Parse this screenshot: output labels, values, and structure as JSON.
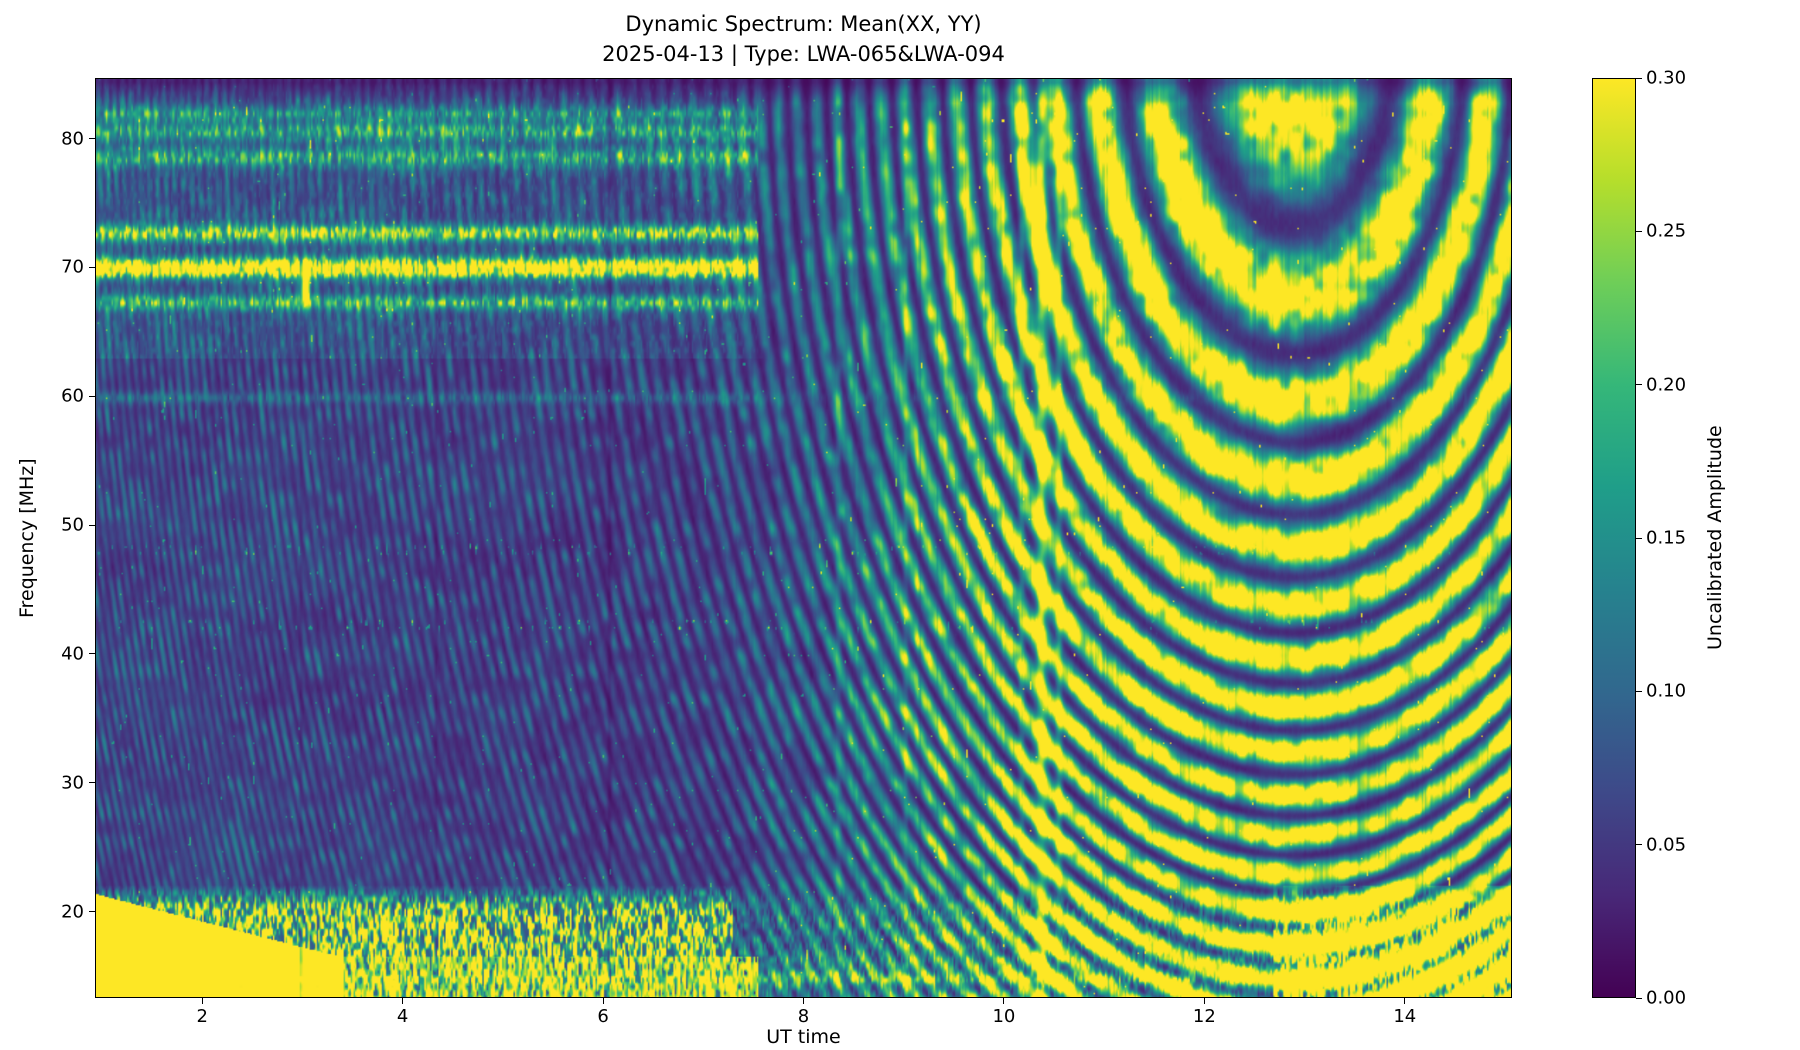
{
  "chart_data": {
    "type": "heatmap",
    "title": "Dynamic Spectrum: Mean(XX, YY)",
    "subtitle": "2025-04-13 | Type: LWA-065&LWA-094",
    "xlabel": "UT time",
    "ylabel": "Frequency [MHz]",
    "x_range": [
      0.93,
      15.07
    ],
    "x_ticks": [
      2,
      4,
      6,
      8,
      10,
      12,
      14
    ],
    "y_range": [
      13.3,
      84.7
    ],
    "y_ticks": [
      20,
      30,
      40,
      50,
      60,
      70,
      80
    ],
    "colormap": "viridis",
    "colormap_stops": [
      "#440154",
      "#482878",
      "#3e4989",
      "#31688e",
      "#26828e",
      "#1f9e89",
      "#35b779",
      "#6ece58",
      "#b5de2b",
      "#fde725"
    ],
    "color_range": [
      0.0,
      0.3
    ],
    "colorbar_ticks": [
      0.0,
      0.05,
      0.1,
      0.15,
      0.2,
      0.25,
      0.3
    ],
    "colorbar_label": "Uncalibrated Amplitude",
    "features": [
      "Interferometric fringe arcs (quasi-concentric rings) centered near UT ~12.9 h, ~87 MHz; fringes saturate above 0.30 over much of the right half (UT 10-15 h)",
      "Faint low-contrast fringe/speckle texture across the left half (UT 1-7.5 h), mean amplitude ~0.03-0.08",
      "Broadband RFI rows near 67, 70, 72.7 MHz and 78-82 MHz, strong/speckled before UT ~7.5 h then absent",
      "Thin RFI row near ~60 MHz",
      "Strong band below ~20-22 MHz: saturated speckle before UT ~7.3 h and after UT ~12.8 h, weak (~0.05-0.10) in between",
      "Solid saturated yellow wedge in lower-left corner (UT ~1-3 h, below ~21 MHz)",
      "Bright full-height vertical RFI streaks near UT ~10.2-10.6 h; fainter ones near 8.3 and 9.0 h; thin dark vertical lines near UT ~4.3 and ~6.1 h",
      "Short bright horizontal dash near UT ~3.0 h, ~68 MHz; sporadic bright dots along ~42 and ~48 MHz",
      "General darker region around UT ~6-8 h at mid/high frequencies"
    ]
  }
}
